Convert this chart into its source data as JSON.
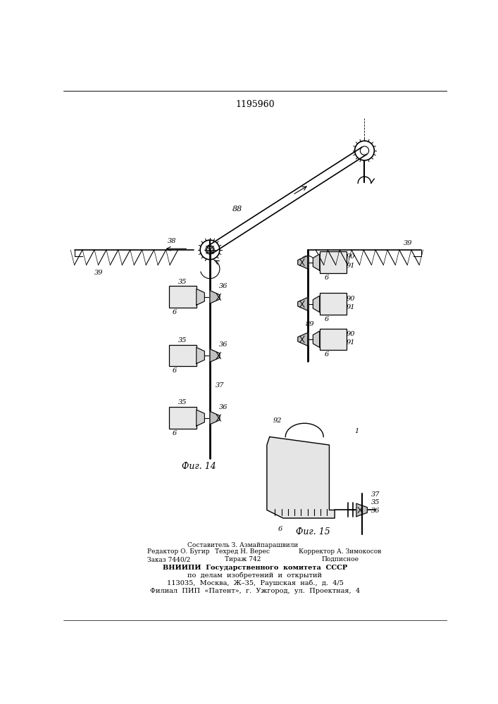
{
  "patent_number": "1195960",
  "fig14_label": "Фиг. 14",
  "fig15_label": "Фиг. 15",
  "bg_color": "#ffffff",
  "line_color": "#000000"
}
